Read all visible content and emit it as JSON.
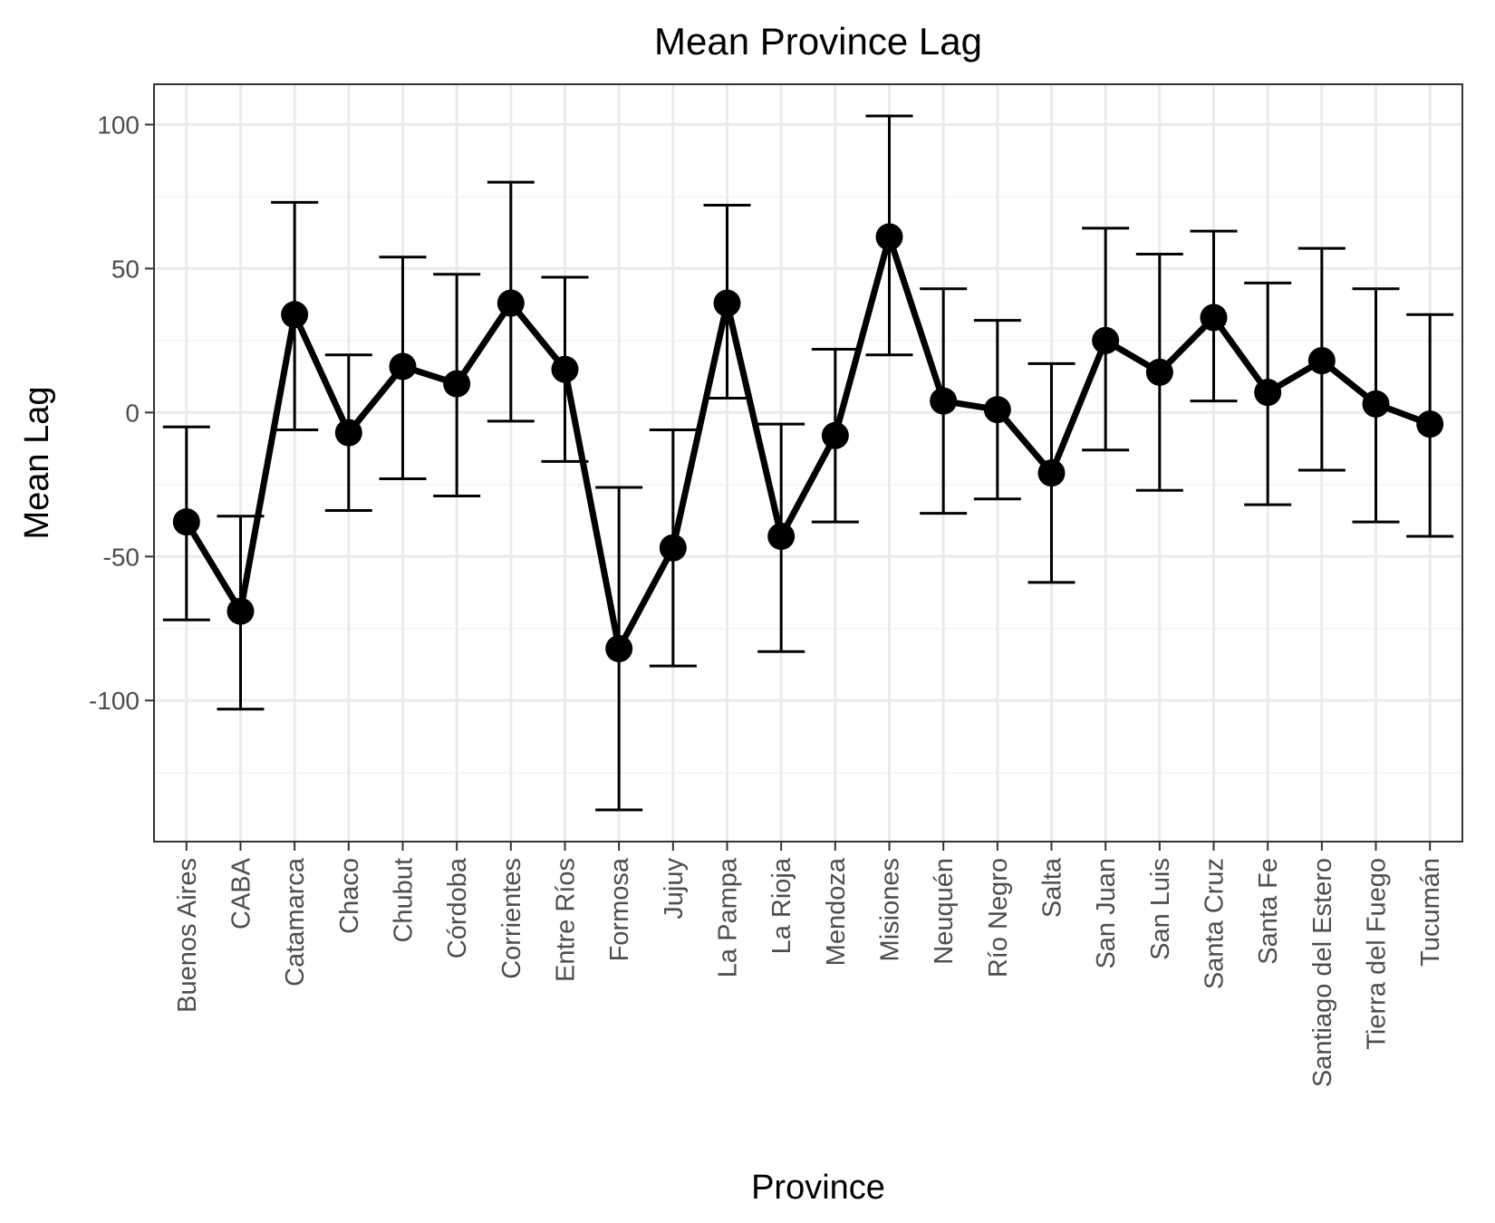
{
  "chart_data": {
    "type": "line",
    "title": "Mean Province Lag",
    "xlabel": "Province",
    "ylabel": "Mean Lag",
    "categories": [
      "Buenos Aires",
      "CABA",
      "Catamarca",
      "Chaco",
      "Chubut",
      "Córdoba",
      "Corrientes",
      "Entre Ríos",
      "Formosa",
      "Jujuy",
      "La Pampa",
      "La Rioja",
      "Mendoza",
      "Misiones",
      "Neuquén",
      "Río Negro",
      "Salta",
      "San Juan",
      "San Luis",
      "Santa Cruz",
      "Santa Fe",
      "Santiago del Estero",
      "Tierra del Fuego",
      "Tucumán"
    ],
    "series": [
      {
        "values": [
          -38,
          -69,
          34,
          -7,
          16,
          10,
          38,
          15,
          -82,
          -47,
          38,
          -43,
          -8,
          61,
          4,
          1,
          -21,
          25,
          14,
          33,
          7,
          18,
          3,
          -4
        ],
        "lower": [
          -72,
          -103,
          -6,
          -34,
          -23,
          -29,
          -3,
          -17,
          -138,
          -88,
          5,
          -83,
          -38,
          20,
          -35,
          -30,
          -59,
          -13,
          -27,
          4,
          -32,
          -20,
          -38,
          -43
        ],
        "upper": [
          -5,
          -36,
          73,
          20,
          54,
          48,
          80,
          47,
          -26,
          -6,
          72,
          -4,
          22,
          103,
          43,
          32,
          17,
          64,
          55,
          63,
          45,
          57,
          43,
          34
        ]
      }
    ],
    "ylim": [
      -149,
      114
    ],
    "yticks": [
      -100,
      -50,
      0,
      50,
      100
    ],
    "grid": true,
    "legend": "none"
  }
}
